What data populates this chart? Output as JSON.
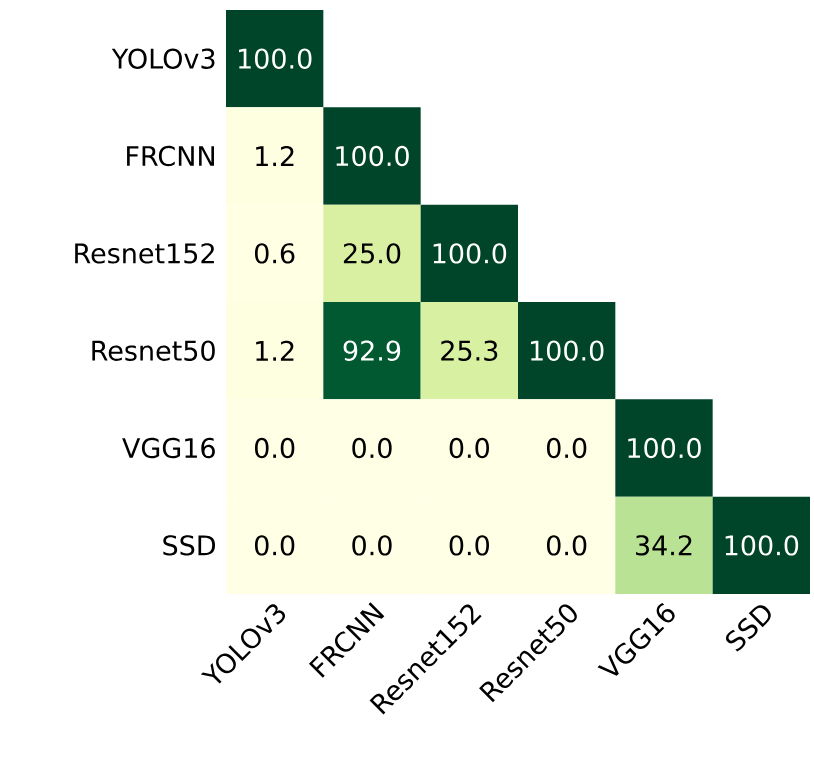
{
  "chart_data": {
    "type": "heatmap",
    "categories": [
      "YOLOv3",
      "FRCNN",
      "Resnet152",
      "Resnet50",
      "VGG16",
      "SSD"
    ],
    "y_categories": [
      "YOLOv3",
      "FRCNN",
      "Resnet152",
      "Resnet50",
      "VGG16",
      "SSD"
    ],
    "cells": [
      [
        100.0,
        null,
        null,
        null,
        null,
        null
      ],
      [
        1.2,
        100.0,
        null,
        null,
        null,
        null
      ],
      [
        0.6,
        25.0,
        100.0,
        null,
        null,
        null
      ],
      [
        1.2,
        92.9,
        25.3,
        100.0,
        null,
        null
      ],
      [
        0.0,
        0.0,
        0.0,
        0.0,
        100.0,
        null
      ],
      [
        0.0,
        0.0,
        0.0,
        0.0,
        34.2,
        100.0
      ]
    ],
    "cell_labels": [
      [
        "100.0",
        null,
        null,
        null,
        null,
        null
      ],
      [
        "1.2",
        "100.0",
        null,
        null,
        null,
        null
      ],
      [
        "0.6",
        "25.0",
        "100.0",
        null,
        null,
        null
      ],
      [
        "1.2",
        "92.9",
        "25.3",
        "100.0",
        null,
        null
      ],
      [
        "0.0",
        "0.0",
        "0.0",
        "0.0",
        "100.0",
        null
      ],
      [
        "0.0",
        "0.0",
        "0.0",
        "0.0",
        "34.2",
        "100.0"
      ]
    ]
  }
}
